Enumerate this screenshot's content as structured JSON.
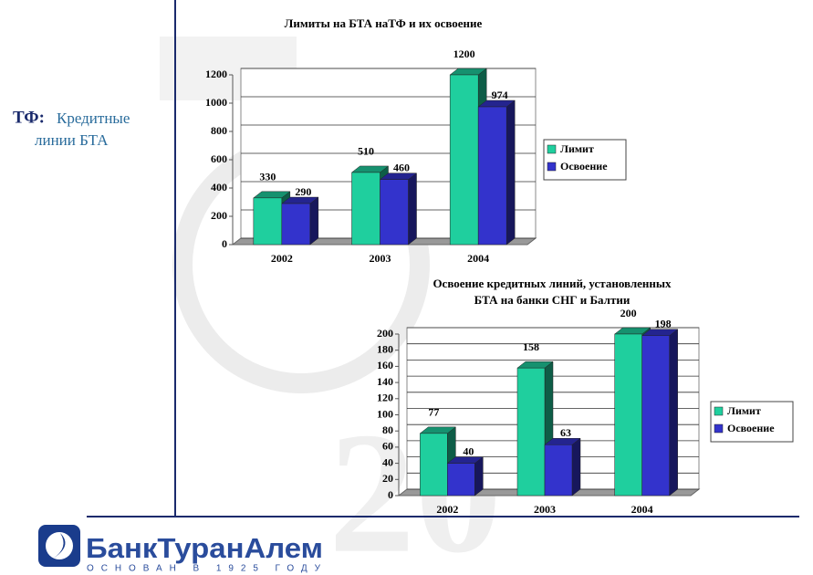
{
  "sidebar": {
    "prefix": "ТФ:",
    "lines": [
      "Кредитные",
      "линии БТА"
    ]
  },
  "logo": {
    "name": "БанкТуранАлем",
    "tagline": "ОСНОВАН В 1925 ГОДУ"
  },
  "chart_data": [
    {
      "type": "bar",
      "title": [
        "Лимиты на  БТА наТФ и их освоение"
      ],
      "categories": [
        "2002",
        "2003",
        "2004"
      ],
      "series": [
        {
          "name": "Лимит",
          "color": "#1fcf9e",
          "values": [
            330,
            510,
            1200
          ]
        },
        {
          "name": "Освоение",
          "color": "#3333cc",
          "values": [
            290,
            460,
            974
          ]
        }
      ],
      "ylim": [
        0,
        1200
      ],
      "yticks": [
        0,
        200,
        400,
        600,
        800,
        1000,
        1200
      ],
      "grid": true,
      "legend": "right"
    },
    {
      "type": "bar",
      "title": [
        "Освоение кредитных линий, установленных",
        "БТА на банки СНГ и Балтии"
      ],
      "categories": [
        "2002",
        "2003",
        "2004"
      ],
      "series": [
        {
          "name": "Лимит",
          "color": "#1fcf9e",
          "values": [
            77,
            158,
            200
          ]
        },
        {
          "name": "Освоение",
          "color": "#3333cc",
          "values": [
            40,
            63,
            198
          ]
        }
      ],
      "ylim": [
        0,
        200
      ],
      "yticks": [
        0,
        20,
        40,
        60,
        80,
        100,
        120,
        140,
        160,
        180,
        200
      ],
      "grid": true,
      "legend": "right"
    }
  ]
}
